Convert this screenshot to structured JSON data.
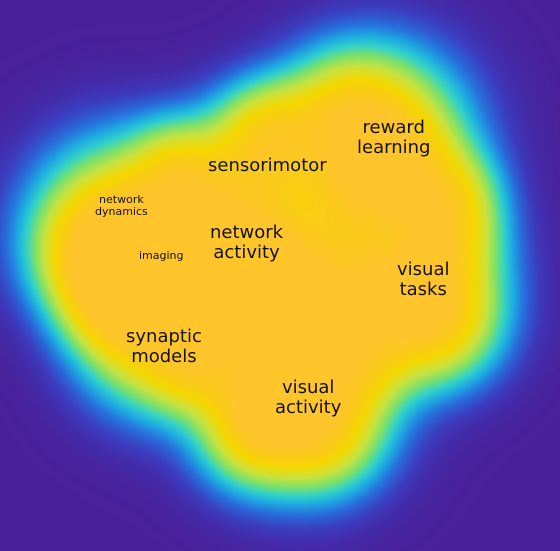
{
  "background_color": "#4a1f9a",
  "palette": [
    "#4a1f9a",
    "#2f5fd0",
    "#1fa6e0",
    "#33d6c8",
    "#78e06a",
    "#c6e240",
    "#f4d600",
    "#ffc52a"
  ],
  "labels": {
    "reward_learning": [
      "reward",
      "learning"
    ],
    "sensorimotor": [
      "sensorimotor"
    ],
    "network_dynamics": [
      "network",
      "dynamics"
    ],
    "imaging": [
      "imaging"
    ],
    "network_activity": [
      "network",
      "activity"
    ],
    "visual_tasks": [
      "visual",
      "tasks"
    ],
    "synaptic_models": [
      "synaptic",
      "models"
    ],
    "visual_activity": [
      "visual",
      "activity"
    ]
  }
}
